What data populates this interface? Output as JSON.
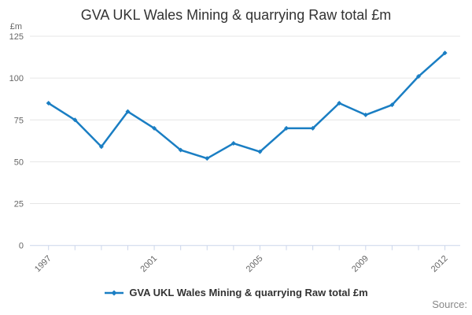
{
  "title": "GVA UKL Wales Mining & quarrying Raw total £m",
  "chart_data": {
    "type": "line",
    "title": "GVA UKL Wales Mining & quarrying Raw total £m",
    "x": [
      1997,
      1998,
      1999,
      2000,
      2001,
      2002,
      2003,
      2004,
      2005,
      2006,
      2007,
      2008,
      2009,
      2010,
      2011,
      2012
    ],
    "series": [
      {
        "name": "GVA UKL Wales Mining & quarrying Raw total £m",
        "values": [
          85,
          75,
          59,
          80,
          70,
          57,
          52,
          61,
          56,
          70,
          70,
          85,
          78,
          84,
          101,
          115
        ]
      }
    ],
    "xlabel": "",
    "ylabel": "£m",
    "ylim": [
      0,
      125
    ],
    "yticks": [
      0,
      25,
      50,
      75,
      100,
      125
    ],
    "xtick_labels": [
      "1997",
      "2001",
      "2005",
      "2009",
      "2012"
    ],
    "grid": true,
    "legend_position": "bottom",
    "colors": {
      "line": "#1A7EC3",
      "grid": "#E6E6E6",
      "axis": "#CCD6EB",
      "tick_label": "#666666",
      "title": "#333333",
      "source": "#888888"
    }
  },
  "legend": {
    "label": "GVA UKL Wales Mining & quarrying Raw total £m"
  },
  "source": {
    "label": "Source:"
  }
}
